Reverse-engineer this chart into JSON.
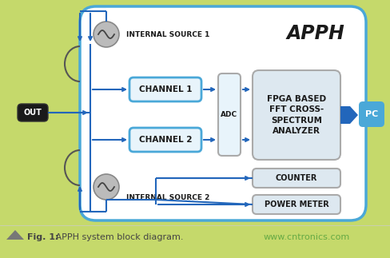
{
  "bg_color": "#c5d96b",
  "main_box_facecolor": "#ffffff",
  "main_box_edge": "#4aa8d8",
  "channel_box_fc": "#e8f4fb",
  "channel_box_ec": "#4aa8d8",
  "adc_box_fc": "#e8f4fb",
  "adc_box_ec": "#aaaaaa",
  "fpga_box_fc": "#dde8f0",
  "fpga_box_ec": "#aaaaaa",
  "small_box_fc": "#dde8f0",
  "small_box_ec": "#aaaaaa",
  "out_box_fc": "#1a1a1a",
  "pc_box_fc": "#4aa8d8",
  "arrow_color": "#2266bb",
  "circle_fc": "#bbbbbb",
  "circle_ec": "#888888",
  "arc_color": "#555555",
  "title": "APPH",
  "src1_label": "INTERNAL SOURCE 1",
  "src2_label": "INTERNAL SOURCE 2",
  "ch1_label": "CHANNEL 1",
  "ch2_label": "CHANNEL 2",
  "adc_label": "ADC",
  "fpga_label": "FPGA BASED\nFFT CROSS-\nSPECTRUM\nANALYZER",
  "counter_label": "COUNTER",
  "power_label": "POWER METER",
  "out_label": "OUT",
  "pc_label": "PC",
  "caption_bold": "Fig. 1:",
  "caption_normal": " APPH system block diagram.",
  "caption_url": "www.cntronics.com",
  "caption_url_color": "#66aa44",
  "caption_color": "#444444",
  "triangle_color": "#777777"
}
